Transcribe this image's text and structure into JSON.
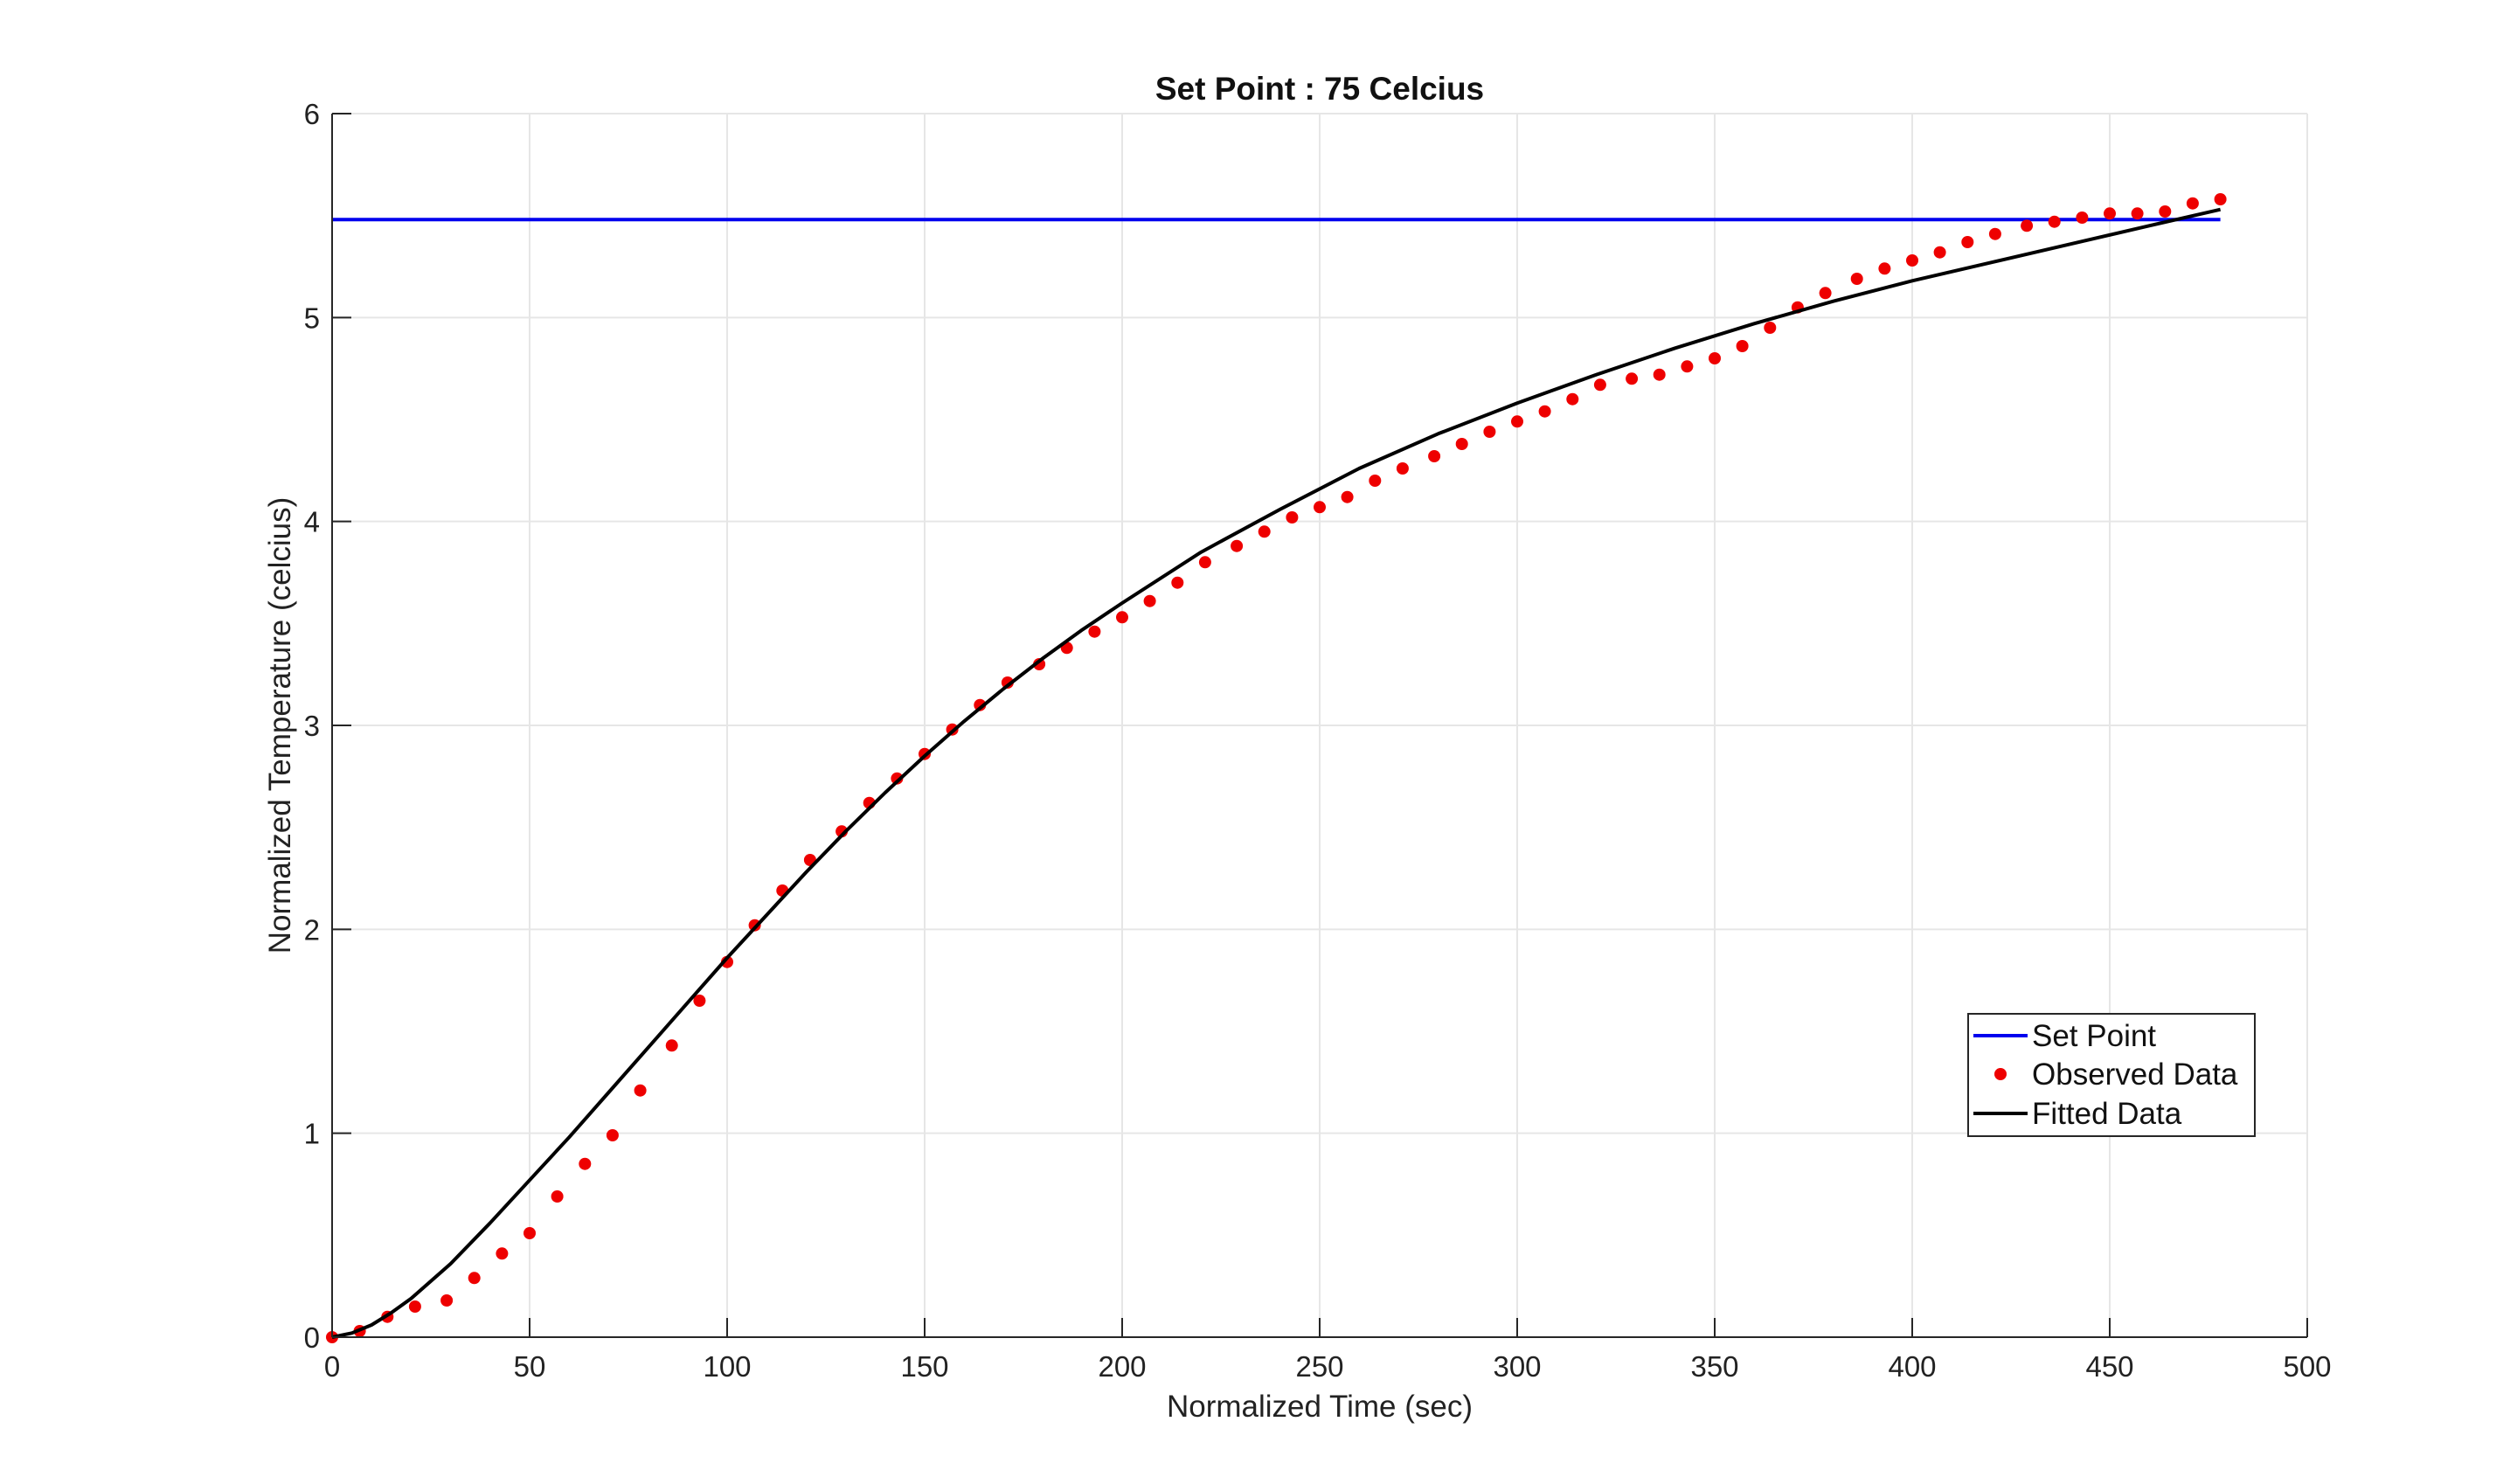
{
  "chart_data": {
    "type": "line",
    "title": "Set Point : 75 Celcius",
    "xlabel": "Normalized Time (sec)",
    "ylabel": "Normalized Temperature (celcius)",
    "xlim": [
      0,
      500
    ],
    "ylim": [
      0,
      6
    ],
    "xticks": [
      0,
      50,
      100,
      150,
      200,
      250,
      300,
      350,
      400,
      450,
      500
    ],
    "yticks": [
      0,
      1,
      2,
      3,
      4,
      5,
      6
    ],
    "grid": true,
    "legend": {
      "position": "lower-right"
    },
    "colors": {
      "set_point": "#0000ee",
      "observed": "#ee0000",
      "fitted": "#000000",
      "grid": "#e6e6e6",
      "axis": "#262626"
    },
    "series": [
      {
        "name": "Set Point",
        "kind": "line",
        "x": [
          0,
          478
        ],
        "y": [
          5.48,
          5.48
        ]
      },
      {
        "name": "Observed Data",
        "kind": "markers",
        "x": [
          0,
          7,
          14,
          21,
          29,
          36,
          43,
          50,
          57,
          64,
          71,
          78,
          86,
          93,
          100,
          107,
          114,
          121,
          129,
          136,
          143,
          150,
          157,
          164,
          171,
          179,
          186,
          193,
          200,
          207,
          214,
          221,
          229,
          236,
          243,
          250,
          257,
          264,
          271,
          279,
          286,
          293,
          300,
          307,
          314,
          321,
          329,
          336,
          343,
          350,
          357,
          364,
          371,
          378,
          386,
          393,
          400,
          407,
          414,
          421,
          429,
          436,
          443,
          450,
          457,
          464,
          471,
          478
        ],
        "y": [
          0.0,
          0.03,
          0.1,
          0.15,
          0.18,
          0.29,
          0.41,
          0.51,
          0.69,
          0.85,
          0.99,
          1.21,
          1.43,
          1.65,
          1.84,
          2.02,
          2.19,
          2.34,
          2.48,
          2.62,
          2.74,
          2.86,
          2.98,
          3.1,
          3.21,
          3.3,
          3.38,
          3.46,
          3.53,
          3.61,
          3.7,
          3.8,
          3.88,
          3.95,
          4.02,
          4.07,
          4.12,
          4.2,
          4.26,
          4.32,
          4.38,
          4.44,
          4.49,
          4.54,
          4.6,
          4.67,
          4.7,
          4.72,
          4.76,
          4.8,
          4.86,
          4.95,
          5.05,
          5.12,
          5.19,
          5.24,
          5.28,
          5.32,
          5.37,
          5.41,
          5.45,
          5.47,
          5.49,
          5.51,
          5.51,
          5.52,
          5.56,
          5.58
        ]
      },
      {
        "name": "Fitted Data",
        "kind": "line",
        "x": [
          0,
          5,
          10,
          15,
          20,
          30,
          40,
          50,
          60,
          70,
          80,
          90,
          100,
          110,
          120,
          130,
          140,
          150,
          160,
          170,
          180,
          190,
          200,
          220,
          240,
          260,
          280,
          300,
          320,
          340,
          360,
          380,
          400,
          420,
          440,
          460,
          478
        ],
        "y": [
          0.0,
          0.02,
          0.06,
          0.12,
          0.19,
          0.36,
          0.56,
          0.77,
          0.98,
          1.2,
          1.42,
          1.64,
          1.86,
          2.07,
          2.28,
          2.48,
          2.67,
          2.85,
          3.02,
          3.18,
          3.33,
          3.47,
          3.6,
          3.85,
          4.06,
          4.26,
          4.43,
          4.58,
          4.72,
          4.85,
          4.97,
          5.08,
          5.18,
          5.27,
          5.36,
          5.45,
          5.53
        ]
      }
    ]
  }
}
